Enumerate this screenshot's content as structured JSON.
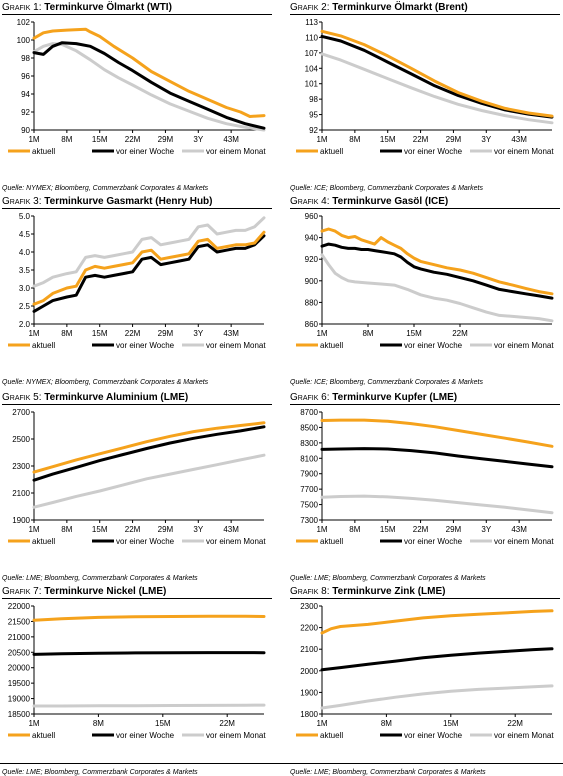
{
  "colors": {
    "aktuell": "#f5a21c",
    "woche": "#000000",
    "monat": "#cccccc",
    "axis": "#000000"
  },
  "chart_data": [
    {
      "type": "line",
      "grafik": "Grafik 1:",
      "title": "Terminkurve Ölmarkt (WTI)",
      "source": "Quelle: NYMEX; Bloomberg, Commerzbank Corporates & Markets",
      "xticks": [
        "1M",
        "8M",
        "15M",
        "22M",
        "29M",
        "3Y",
        "43M"
      ],
      "xrange": [
        1,
        50
      ],
      "yticks": [
        "90",
        "92",
        "94",
        "96",
        "98",
        "100",
        "102"
      ],
      "yrange": [
        90,
        102
      ],
      "series": [
        {
          "name": "aktuell",
          "key": "aktuell",
          "x": [
            1,
            3,
            5,
            8,
            12,
            13,
            15,
            18,
            22,
            26,
            30,
            34,
            38,
            42,
            45,
            47,
            50
          ],
          "y": [
            100.2,
            100.8,
            101.0,
            101.1,
            101.2,
            100.9,
            100.4,
            99.3,
            98.0,
            96.5,
            95.4,
            94.3,
            93.4,
            92.5,
            92.0,
            91.5,
            91.6
          ]
        },
        {
          "name": "vor einer Woche",
          "key": "woche",
          "x": [
            1,
            3,
            5,
            7,
            10,
            13,
            16,
            19,
            22,
            26,
            30,
            34,
            38,
            42,
            46,
            50
          ],
          "y": [
            98.6,
            98.4,
            99.3,
            99.7,
            99.6,
            99.3,
            98.5,
            97.5,
            96.6,
            95.3,
            94.1,
            93.2,
            92.3,
            91.4,
            90.7,
            90.2
          ]
        },
        {
          "name": "vor einem Monat",
          "key": "monat",
          "x": [
            1,
            3,
            5,
            7,
            10,
            13,
            16,
            19,
            22,
            26,
            30,
            34,
            38,
            42,
            46,
            50
          ],
          "y": [
            98.7,
            99.3,
            99.6,
            99.5,
            98.8,
            97.8,
            96.7,
            95.8,
            95.0,
            93.9,
            92.9,
            92.1,
            91.3,
            90.7,
            90.3,
            90.0
          ]
        }
      ]
    },
    {
      "type": "line",
      "grafik": "Grafik 2:",
      "title": "Terminkurve Ölmarkt (Brent)",
      "source": "Quelle: ICE; Bloomberg, Commerzbank Corporates & Markets",
      "xticks": [
        "1M",
        "8M",
        "15M",
        "22M",
        "29M",
        "3Y",
        "43M"
      ],
      "xrange": [
        1,
        50
      ],
      "yticks": [
        "92",
        "95",
        "98",
        "101",
        "104",
        "107",
        "110",
        "113"
      ],
      "yrange": [
        92,
        113
      ],
      "series": [
        {
          "name": "aktuell",
          "key": "aktuell",
          "x": [
            1,
            5,
            10,
            15,
            20,
            25,
            30,
            35,
            40,
            45,
            50
          ],
          "y": [
            111.2,
            110.3,
            108.6,
            106.4,
            104.0,
            101.5,
            99.3,
            97.6,
            96.2,
            95.3,
            94.7
          ]
        },
        {
          "name": "vor einer Woche",
          "key": "woche",
          "x": [
            1,
            5,
            10,
            15,
            20,
            25,
            30,
            35,
            40,
            45,
            50
          ],
          "y": [
            110.2,
            109.3,
            107.5,
            105.2,
            102.9,
            100.6,
            98.7,
            97.2,
            95.9,
            95.1,
            94.5
          ]
        },
        {
          "name": "vor einem Monat",
          "key": "monat",
          "x": [
            1,
            5,
            10,
            15,
            20,
            25,
            30,
            35,
            40,
            45,
            50
          ],
          "y": [
            106.8,
            105.6,
            103.8,
            102.0,
            100.2,
            98.5,
            97.0,
            95.8,
            94.8,
            94.0,
            93.4
          ]
        }
      ]
    },
    {
      "type": "line",
      "grafik": "Grafik 3:",
      "title": "Terminkurve Gasmarkt (Henry Hub)",
      "source": "Quelle: NYMEX; Bloomberg, Commerzbank Corporates & Markets",
      "xticks": [
        "1M",
        "8M",
        "15M",
        "22M",
        "29M",
        "3Y",
        "43M"
      ],
      "xrange": [
        1,
        50
      ],
      "yticks": [
        "2.0",
        "2.5",
        "3.0",
        "3.5",
        "4.0",
        "4.5",
        "5.0"
      ],
      "yrange": [
        2.0,
        5.0
      ],
      "series": [
        {
          "name": "aktuell",
          "key": "aktuell",
          "x": [
            1,
            3,
            5,
            8,
            10,
            12,
            14,
            16,
            18,
            20,
            22,
            24,
            26,
            28,
            30,
            32,
            34,
            36,
            38,
            40,
            42,
            44,
            46,
            48,
            50
          ],
          "y": [
            2.55,
            2.65,
            2.85,
            3.0,
            3.05,
            3.5,
            3.6,
            3.55,
            3.6,
            3.65,
            3.7,
            4.0,
            4.05,
            3.8,
            3.85,
            3.9,
            3.95,
            4.3,
            4.35,
            4.1,
            4.15,
            4.2,
            4.2,
            4.25,
            4.55
          ]
        },
        {
          "name": "vor einer Woche",
          "key": "woche",
          "x": [
            1,
            3,
            5,
            8,
            10,
            12,
            14,
            16,
            18,
            20,
            22,
            24,
            26,
            28,
            30,
            32,
            34,
            36,
            38,
            40,
            42,
            44,
            46,
            48,
            50
          ],
          "y": [
            2.35,
            2.5,
            2.65,
            2.75,
            2.8,
            3.3,
            3.35,
            3.3,
            3.35,
            3.4,
            3.45,
            3.8,
            3.85,
            3.65,
            3.7,
            3.75,
            3.8,
            4.15,
            4.2,
            4.0,
            4.05,
            4.1,
            4.1,
            4.2,
            4.45
          ]
        },
        {
          "name": "vor einem Monat",
          "key": "monat",
          "x": [
            1,
            3,
            5,
            8,
            10,
            12,
            14,
            16,
            18,
            20,
            22,
            24,
            26,
            28,
            30,
            32,
            34,
            36,
            38,
            40,
            42,
            44,
            46,
            48,
            50
          ],
          "y": [
            3.05,
            3.15,
            3.3,
            3.4,
            3.45,
            3.85,
            3.9,
            3.85,
            3.9,
            3.95,
            4.0,
            4.35,
            4.4,
            4.2,
            4.25,
            4.3,
            4.35,
            4.7,
            4.75,
            4.5,
            4.55,
            4.6,
            4.6,
            4.7,
            4.95
          ]
        }
      ]
    },
    {
      "type": "line",
      "grafik": "Grafik 4:",
      "title": "Terminkurve Gasöl (ICE)",
      "source": "Quelle: ICE; Bloomberg, Commerzbank Corporates & Markets",
      "xticks": [
        "1M",
        "8M",
        "15M",
        "22M"
      ],
      "xrange": [
        1,
        36
      ],
      "yticks": [
        "860",
        "880",
        "900",
        "920",
        "940",
        "960"
      ],
      "yrange": [
        860,
        960
      ],
      "series": [
        {
          "name": "aktuell",
          "key": "aktuell",
          "x": [
            1,
            2,
            3,
            4,
            5,
            6,
            7,
            8,
            9,
            10,
            11,
            12,
            13,
            14,
            15,
            16,
            18,
            20,
            22,
            24,
            26,
            28,
            30,
            32,
            34,
            36
          ],
          "y": [
            946,
            948,
            946,
            942,
            940,
            941,
            938,
            936,
            934,
            940,
            936,
            933,
            930,
            925,
            921,
            918,
            915,
            912,
            910,
            907,
            903,
            899,
            896,
            893,
            890,
            888
          ]
        },
        {
          "name": "vor einer Woche",
          "key": "woche",
          "x": [
            1,
            2,
            3,
            4,
            5,
            6,
            7,
            8,
            9,
            10,
            11,
            12,
            13,
            14,
            15,
            16,
            18,
            20,
            22,
            24,
            26,
            28,
            30,
            32,
            34,
            36
          ],
          "y": [
            932,
            934,
            933,
            931,
            930,
            930,
            929,
            929,
            928,
            927,
            926,
            925,
            922,
            917,
            913,
            911,
            908,
            906,
            903,
            900,
            896,
            892,
            890,
            888,
            886,
            884
          ]
        },
        {
          "name": "vor einem Monat",
          "key": "monat",
          "x": [
            1,
            2,
            3,
            4,
            5,
            6,
            8,
            10,
            12,
            14,
            16,
            18,
            20,
            22,
            24,
            26,
            28,
            30,
            32,
            34,
            36
          ],
          "y": [
            924,
            915,
            907,
            903,
            900,
            899,
            898,
            897,
            896,
            892,
            887,
            884,
            882,
            879,
            875,
            871,
            868,
            867,
            866,
            865,
            863
          ]
        }
      ]
    },
    {
      "type": "line",
      "grafik": "Grafik 5:",
      "title": "Terminkurve Aluminium (LME)",
      "source": "Quelle: LME; Bloomberg, Commerzbank Corporates & Markets",
      "xticks": [
        "1M",
        "8M",
        "15M",
        "22M",
        "29M",
        "3Y",
        "43M"
      ],
      "xrange": [
        1,
        50
      ],
      "yticks": [
        "1900",
        "2100",
        "2300",
        "2500",
        "2700"
      ],
      "yrange": [
        1900,
        2700
      ],
      "series": [
        {
          "name": "aktuell",
          "key": "aktuell",
          "x": [
            1,
            5,
            10,
            15,
            20,
            25,
            30,
            35,
            40,
            45,
            50
          ],
          "y": [
            2255,
            2295,
            2345,
            2390,
            2435,
            2480,
            2520,
            2555,
            2580,
            2600,
            2620
          ]
        },
        {
          "name": "vor einer Woche",
          "key": "woche",
          "x": [
            1,
            5,
            10,
            15,
            20,
            25,
            30,
            35,
            40,
            45,
            50
          ],
          "y": [
            2195,
            2240,
            2290,
            2340,
            2385,
            2430,
            2470,
            2505,
            2535,
            2560,
            2590
          ]
        },
        {
          "name": "vor einem Monat",
          "key": "monat",
          "x": [
            1,
            5,
            10,
            15,
            20,
            25,
            30,
            35,
            40,
            45,
            50
          ],
          "y": [
            1995,
            2030,
            2075,
            2115,
            2160,
            2205,
            2240,
            2275,
            2310,
            2345,
            2380
          ]
        }
      ]
    },
    {
      "type": "line",
      "grafik": "Grafik 6:",
      "title": "Terminkurve Kupfer (LME)",
      "source": "Quelle: LME; Bloomberg, Commerzbank Corporates & Markets",
      "xticks": [
        "1M",
        "8M",
        "15M",
        "22M",
        "29M",
        "3Y",
        "43M"
      ],
      "xrange": [
        1,
        50
      ],
      "yticks": [
        "7300",
        "7500",
        "7700",
        "7900",
        "8100",
        "8300",
        "8500",
        "8700"
      ],
      "yrange": [
        7300,
        8700
      ],
      "series": [
        {
          "name": "aktuell",
          "key": "aktuell",
          "x": [
            1,
            5,
            10,
            15,
            20,
            25,
            30,
            35,
            40,
            45,
            50
          ],
          "y": [
            8590,
            8595,
            8595,
            8580,
            8550,
            8510,
            8460,
            8410,
            8360,
            8310,
            8255
          ]
        },
        {
          "name": "vor einer Woche",
          "key": "woche",
          "x": [
            1,
            5,
            10,
            15,
            20,
            25,
            30,
            35,
            40,
            45,
            50
          ],
          "y": [
            8215,
            8220,
            8225,
            8220,
            8200,
            8170,
            8130,
            8095,
            8060,
            8025,
            7990
          ]
        },
        {
          "name": "vor einem Monat",
          "key": "monat",
          "x": [
            1,
            5,
            10,
            15,
            20,
            25,
            30,
            35,
            40,
            45,
            50
          ],
          "y": [
            7595,
            7605,
            7610,
            7600,
            7580,
            7555,
            7525,
            7495,
            7465,
            7430,
            7395
          ]
        }
      ]
    },
    {
      "type": "line",
      "grafik": "Grafik 7:",
      "title": "Terminkurve Nickel (LME)",
      "source": "Quelle: LME; Bloomberg, Commerzbank Corporates & Markets",
      "xticks": [
        "1M",
        "8M",
        "15M",
        "22M"
      ],
      "xrange": [
        1,
        26
      ],
      "yticks": [
        "18500",
        "19000",
        "19500",
        "20000",
        "20500",
        "21000",
        "21500",
        "22000"
      ],
      "yrange": [
        18500,
        22000
      ],
      "series": [
        {
          "name": "aktuell",
          "key": "aktuell",
          "x": [
            1,
            4,
            8,
            12,
            16,
            20,
            24,
            26
          ],
          "y": [
            21540,
            21590,
            21630,
            21650,
            21660,
            21665,
            21665,
            21660
          ]
        },
        {
          "name": "vor einer Woche",
          "key": "woche",
          "x": [
            1,
            4,
            8,
            12,
            16,
            20,
            24,
            26
          ],
          "y": [
            20430,
            20450,
            20470,
            20480,
            20485,
            20490,
            20490,
            20485
          ]
        },
        {
          "name": "vor einem Monat",
          "key": "monat",
          "x": [
            1,
            4,
            8,
            12,
            16,
            20,
            24,
            26
          ],
          "y": [
            18760,
            18760,
            18765,
            18770,
            18775,
            18780,
            18785,
            18790
          ]
        }
      ]
    },
    {
      "type": "line",
      "grafik": "Grafik 8:",
      "title": "Terminkurve Zink (LME)",
      "source": "Quelle: LME; Bloomberg, Commerzbank Corporates & Markets",
      "xticks": [
        "1M",
        "8M",
        "15M",
        "22M"
      ],
      "xrange": [
        1,
        26
      ],
      "yticks": [
        "1800",
        "1900",
        "2000",
        "2100",
        "2200",
        "2300"
      ],
      "yrange": [
        1800,
        2300
      ],
      "series": [
        {
          "name": "aktuell",
          "key": "aktuell",
          "x": [
            1,
            2,
            3,
            6,
            9,
            12,
            15,
            18,
            21,
            24,
            26
          ],
          "y": [
            2175,
            2195,
            2205,
            2215,
            2230,
            2245,
            2255,
            2262,
            2268,
            2275,
            2278
          ]
        },
        {
          "name": "vor einer Woche",
          "key": "woche",
          "x": [
            1,
            3,
            6,
            9,
            12,
            15,
            18,
            21,
            24,
            26
          ],
          "y": [
            2005,
            2015,
            2030,
            2045,
            2060,
            2072,
            2082,
            2090,
            2098,
            2102
          ]
        },
        {
          "name": "vor einem Monat",
          "key": "monat",
          "x": [
            1,
            3,
            6,
            9,
            12,
            15,
            18,
            21,
            24,
            26
          ],
          "y": [
            1828,
            1840,
            1860,
            1878,
            1893,
            1905,
            1914,
            1920,
            1926,
            1930
          ]
        }
      ]
    }
  ]
}
